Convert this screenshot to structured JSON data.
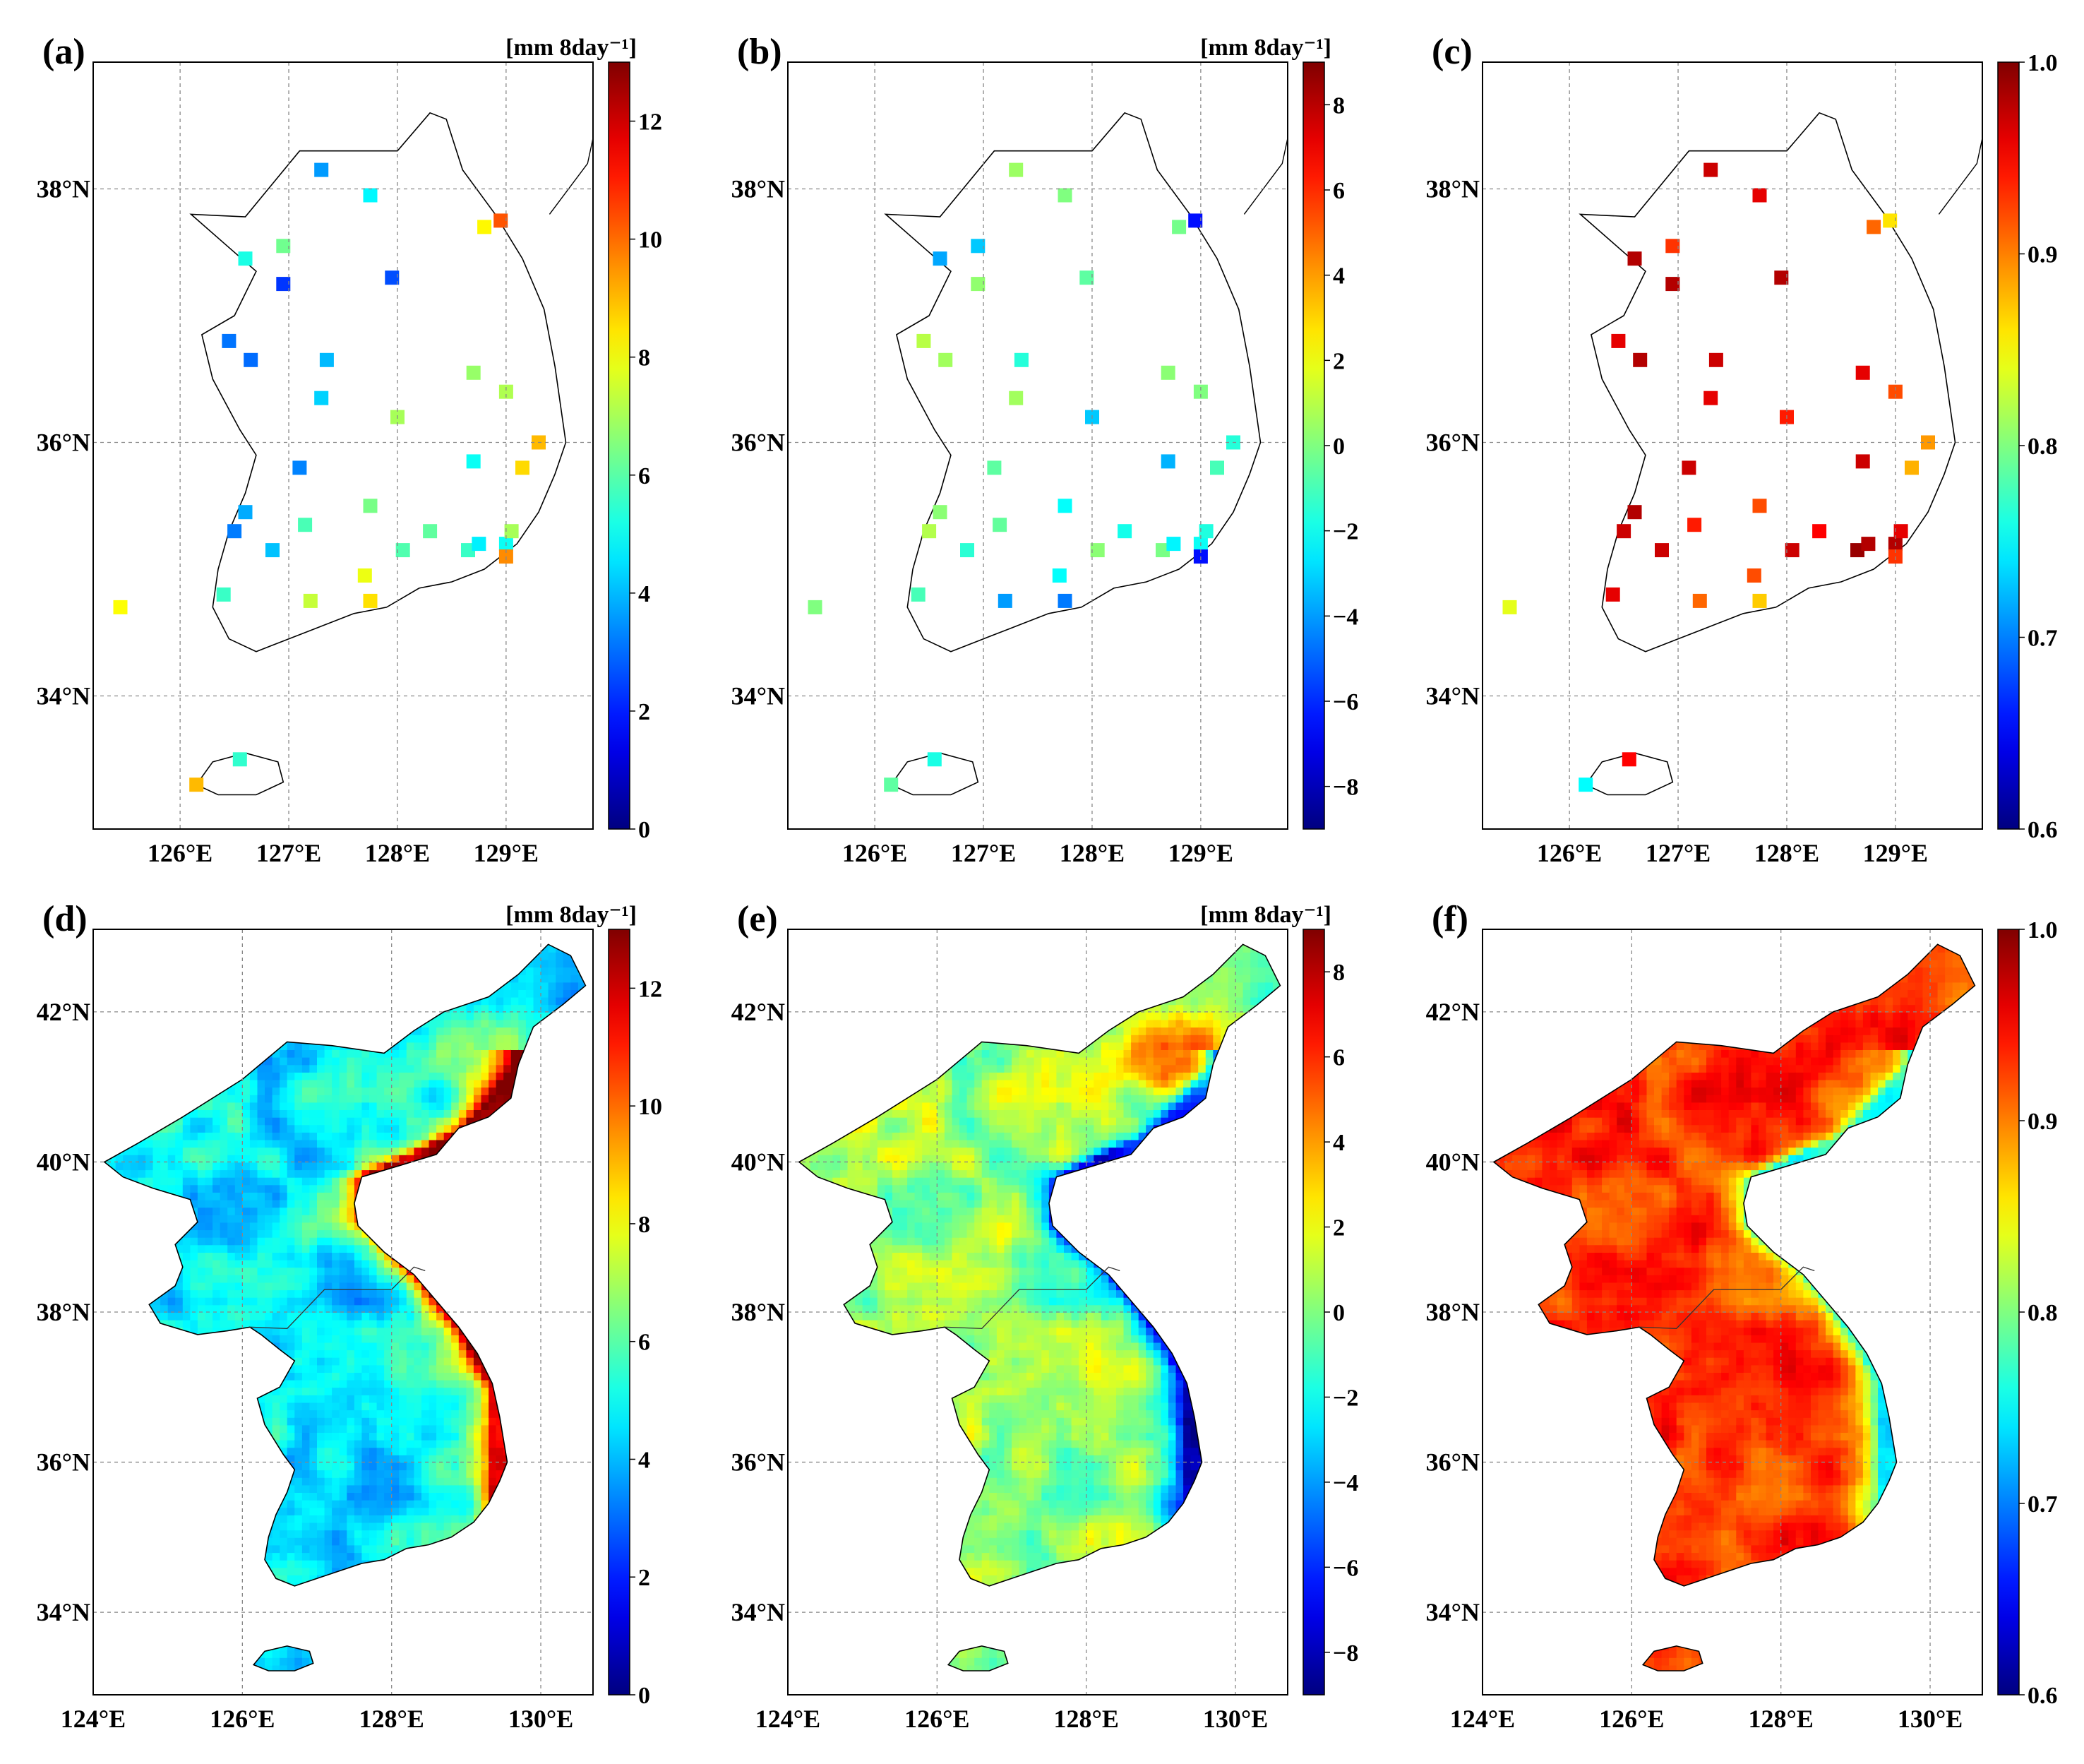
{
  "figure": {
    "panels": [
      {
        "id": "a",
        "label": "(a)",
        "type": "station",
        "units": "[mm 8day⁻¹]",
        "cbar": {
          "min": 0,
          "max": 13,
          "ticks": [
            "0",
            "2",
            "4",
            "6",
            "8",
            "10",
            "12"
          ]
        },
        "lon_ticks": [
          "126°E",
          "127°E",
          "128°E",
          "129°E"
        ],
        "lat_ticks": [
          "38°N",
          "36°N",
          "34°N"
        ]
      },
      {
        "id": "b",
        "label": "(b)",
        "type": "station",
        "units": "[mm 8day⁻¹]",
        "cbar": {
          "min": -9,
          "max": 9,
          "ticks": [
            "−8",
            "−6",
            "−4",
            "−2",
            "0",
            "2",
            "4",
            "6",
            "8"
          ]
        },
        "lon_ticks": [
          "126°E",
          "127°E",
          "128°E",
          "129°E"
        ],
        "lat_ticks": [
          "38°N",
          "36°N",
          "34°N"
        ]
      },
      {
        "id": "c",
        "label": "(c)",
        "type": "station",
        "units": "",
        "cbar": {
          "min": 0.6,
          "max": 1.0,
          "ticks": [
            "0.6",
            "0.7",
            "0.8",
            "0.9",
            "1.0"
          ]
        },
        "lon_ticks": [
          "126°E",
          "127°E",
          "128°E",
          "129°E"
        ],
        "lat_ticks": [
          "38°N",
          "36°N",
          "34°N"
        ]
      },
      {
        "id": "d",
        "label": "(d)",
        "type": "gridded",
        "units": "[mm 8day⁻¹]",
        "cbar": {
          "min": 0,
          "max": 13,
          "ticks": [
            "0",
            "2",
            "4",
            "6",
            "8",
            "10",
            "12"
          ]
        },
        "lon_ticks": [
          "124°E",
          "126°E",
          "128°E",
          "130°E"
        ],
        "lat_ticks": [
          "42°N",
          "40°N",
          "38°N",
          "36°N",
          "34°N"
        ]
      },
      {
        "id": "e",
        "label": "(e)",
        "type": "gridded",
        "units": "[mm 8day⁻¹]",
        "cbar": {
          "min": -9,
          "max": 9,
          "ticks": [
            "−8",
            "−6",
            "−4",
            "−2",
            "0",
            "2",
            "4",
            "6",
            "8"
          ]
        },
        "lon_ticks": [
          "124°E",
          "126°E",
          "128°E",
          "130°E"
        ],
        "lat_ticks": [
          "42°N",
          "40°N",
          "38°N",
          "36°N",
          "34°N"
        ]
      },
      {
        "id": "f",
        "label": "(f)",
        "type": "gridded",
        "units": "",
        "cbar": {
          "min": 0.6,
          "max": 1.0,
          "ticks": [
            "0.6",
            "0.7",
            "0.8",
            "0.9",
            "1.0"
          ]
        },
        "lon_ticks": [
          "124°E",
          "126°E",
          "128°E",
          "130°E"
        ],
        "lat_ticks": [
          "42°N",
          "40°N",
          "38°N",
          "36°N",
          "34°N"
        ]
      }
    ]
  },
  "chart_data": [
    {
      "panel": "a",
      "type": "scatter",
      "colorbar_range": [
        0,
        13
      ],
      "points": [
        {
          "lon": 127.3,
          "lat": 38.15,
          "v": 3.6
        },
        {
          "lon": 127.75,
          "lat": 37.95,
          "v": 4.8
        },
        {
          "lon": 128.8,
          "lat": 37.7,
          "v": 8.2
        },
        {
          "lon": 128.95,
          "lat": 37.75,
          "v": 10.3
        },
        {
          "lon": 126.6,
          "lat": 37.45,
          "v": 5.2
        },
        {
          "lon": 126.95,
          "lat": 37.55,
          "v": 6.3
        },
        {
          "lon": 126.95,
          "lat": 37.25,
          "v": 2.3
        },
        {
          "lon": 127.95,
          "lat": 37.3,
          "v": 2.6
        },
        {
          "lon": 126.45,
          "lat": 36.8,
          "v": 3.1
        },
        {
          "lon": 126.65,
          "lat": 36.65,
          "v": 3.0
        },
        {
          "lon": 127.35,
          "lat": 36.65,
          "v": 4.0
        },
        {
          "lon": 127.3,
          "lat": 36.35,
          "v": 4.3
        },
        {
          "lon": 128.7,
          "lat": 36.55,
          "v": 6.8
        },
        {
          "lon": 129.0,
          "lat": 36.4,
          "v": 7.1
        },
        {
          "lon": 128.0,
          "lat": 36.2,
          "v": 7.0
        },
        {
          "lon": 129.3,
          "lat": 36.0,
          "v": 9.0
        },
        {
          "lon": 127.1,
          "lat": 35.8,
          "v": 3.3
        },
        {
          "lon": 128.7,
          "lat": 35.85,
          "v": 5.0
        },
        {
          "lon": 129.15,
          "lat": 35.8,
          "v": 8.6
        },
        {
          "lon": 126.6,
          "lat": 35.45,
          "v": 3.8
        },
        {
          "lon": 126.5,
          "lat": 35.3,
          "v": 3.2
        },
        {
          "lon": 126.85,
          "lat": 35.15,
          "v": 4.1
        },
        {
          "lon": 127.15,
          "lat": 35.35,
          "v": 5.8
        },
        {
          "lon": 127.75,
          "lat": 35.5,
          "v": 6.4
        },
        {
          "lon": 128.05,
          "lat": 35.15,
          "v": 5.9
        },
        {
          "lon": 128.3,
          "lat": 35.3,
          "v": 6.1
        },
        {
          "lon": 128.65,
          "lat": 35.15,
          "v": 5.6
        },
        {
          "lon": 128.75,
          "lat": 35.2,
          "v": 4.7
        },
        {
          "lon": 129.0,
          "lat": 35.2,
          "v": 5.0
        },
        {
          "lon": 129.05,
          "lat": 35.3,
          "v": 7.0
        },
        {
          "lon": 129.0,
          "lat": 35.1,
          "v": 9.6
        },
        {
          "lon": 126.4,
          "lat": 34.8,
          "v": 5.6
        },
        {
          "lon": 127.2,
          "lat": 34.75,
          "v": 7.4
        },
        {
          "lon": 127.7,
          "lat": 34.95,
          "v": 7.9
        },
        {
          "lon": 127.75,
          "lat": 34.75,
          "v": 8.5
        },
        {
          "lon": 125.45,
          "lat": 34.7,
          "v": 8.1
        },
        {
          "lon": 126.55,
          "lat": 33.5,
          "v": 5.5
        },
        {
          "lon": 126.15,
          "lat": 33.3,
          "v": 9.0
        }
      ]
    },
    {
      "panel": "b",
      "type": "scatter",
      "colorbar_range": [
        -9,
        9
      ],
      "points": [
        {
          "lon": 127.3,
          "lat": 38.15,
          "v": 0.5
        },
        {
          "lon": 127.75,
          "lat": 37.95,
          "v": 0.0
        },
        {
          "lon": 128.8,
          "lat": 37.7,
          "v": -0.2
        },
        {
          "lon": 128.95,
          "lat": 37.75,
          "v": -6.5
        },
        {
          "lon": 126.6,
          "lat": 37.45,
          "v": -3.8
        },
        {
          "lon": 126.95,
          "lat": 37.55,
          "v": -3.2
        },
        {
          "lon": 126.95,
          "lat": 37.25,
          "v": 0.3
        },
        {
          "lon": 127.95,
          "lat": 37.3,
          "v": -0.6
        },
        {
          "lon": 126.45,
          "lat": 36.8,
          "v": 1.0
        },
        {
          "lon": 126.65,
          "lat": 36.65,
          "v": 0.6
        },
        {
          "lon": 127.35,
          "lat": 36.65,
          "v": -1.6
        },
        {
          "lon": 127.3,
          "lat": 36.35,
          "v": 0.6
        },
        {
          "lon": 128.7,
          "lat": 36.55,
          "v": 0.2
        },
        {
          "lon": 129.0,
          "lat": 36.4,
          "v": 0.0
        },
        {
          "lon": 128.0,
          "lat": 36.2,
          "v": -3.2
        },
        {
          "lon": 129.3,
          "lat": 36.0,
          "v": -1.6
        },
        {
          "lon": 127.1,
          "lat": 35.8,
          "v": -0.6
        },
        {
          "lon": 128.7,
          "lat": 35.85,
          "v": -3.6
        },
        {
          "lon": 129.15,
          "lat": 35.8,
          "v": -1.0
        },
        {
          "lon": 126.6,
          "lat": 35.45,
          "v": 0.2
        },
        {
          "lon": 126.5,
          "lat": 35.3,
          "v": 0.9
        },
        {
          "lon": 126.85,
          "lat": 35.15,
          "v": -1.5
        },
        {
          "lon": 127.15,
          "lat": 35.35,
          "v": -0.5
        },
        {
          "lon": 127.75,
          "lat": 35.5,
          "v": -2.2
        },
        {
          "lon": 128.05,
          "lat": 35.15,
          "v": 0.2
        },
        {
          "lon": 128.3,
          "lat": 35.3,
          "v": -1.9
        },
        {
          "lon": 128.65,
          "lat": 35.15,
          "v": -0.1
        },
        {
          "lon": 128.75,
          "lat": 35.2,
          "v": -2.4
        },
        {
          "lon": 129.0,
          "lat": 35.2,
          "v": -2.1
        },
        {
          "lon": 129.05,
          "lat": 35.3,
          "v": -1.7
        },
        {
          "lon": 129.0,
          "lat": 35.1,
          "v": -6.5
        },
        {
          "lon": 126.4,
          "lat": 34.8,
          "v": -1.0
        },
        {
          "lon": 127.2,
          "lat": 34.75,
          "v": -4.0
        },
        {
          "lon": 127.7,
          "lat": 34.95,
          "v": -2.2
        },
        {
          "lon": 127.75,
          "lat": 34.75,
          "v": -4.6
        },
        {
          "lon": 125.45,
          "lat": 34.7,
          "v": 0.0
        },
        {
          "lon": 126.55,
          "lat": 33.5,
          "v": -1.8
        },
        {
          "lon": 126.15,
          "lat": 33.3,
          "v": -0.6
        }
      ]
    },
    {
      "panel": "c",
      "type": "scatter",
      "colorbar_range": [
        0.6,
        1.0
      ],
      "points": [
        {
          "lon": 127.3,
          "lat": 38.15,
          "v": 0.97
        },
        {
          "lon": 127.75,
          "lat": 37.95,
          "v": 0.96
        },
        {
          "lon": 128.8,
          "lat": 37.7,
          "v": 0.91
        },
        {
          "lon": 128.95,
          "lat": 37.75,
          "v": 0.86
        },
        {
          "lon": 126.6,
          "lat": 37.45,
          "v": 0.98
        },
        {
          "lon": 126.95,
          "lat": 37.55,
          "v": 0.93
        },
        {
          "lon": 126.95,
          "lat": 37.25,
          "v": 0.98
        },
        {
          "lon": 127.95,
          "lat": 37.3,
          "v": 0.98
        },
        {
          "lon": 126.45,
          "lat": 36.8,
          "v": 0.96
        },
        {
          "lon": 126.65,
          "lat": 36.65,
          "v": 0.98
        },
        {
          "lon": 127.35,
          "lat": 36.65,
          "v": 0.97
        },
        {
          "lon": 127.3,
          "lat": 36.35,
          "v": 0.96
        },
        {
          "lon": 128.7,
          "lat": 36.55,
          "v": 0.96
        },
        {
          "lon": 129.0,
          "lat": 36.4,
          "v": 0.92
        },
        {
          "lon": 128.0,
          "lat": 36.2,
          "v": 0.94
        },
        {
          "lon": 129.3,
          "lat": 36.0,
          "v": 0.89
        },
        {
          "lon": 127.1,
          "lat": 35.8,
          "v": 0.97
        },
        {
          "lon": 128.7,
          "lat": 35.85,
          "v": 0.97
        },
        {
          "lon": 129.15,
          "lat": 35.8,
          "v": 0.88
        },
        {
          "lon": 126.6,
          "lat": 35.45,
          "v": 0.98
        },
        {
          "lon": 126.5,
          "lat": 35.3,
          "v": 0.97
        },
        {
          "lon": 126.85,
          "lat": 35.15,
          "v": 0.97
        },
        {
          "lon": 127.15,
          "lat": 35.35,
          "v": 0.94
        },
        {
          "lon": 127.75,
          "lat": 35.5,
          "v": 0.92
        },
        {
          "lon": 128.05,
          "lat": 35.15,
          "v": 0.97
        },
        {
          "lon": 128.3,
          "lat": 35.3,
          "v": 0.95
        },
        {
          "lon": 128.65,
          "lat": 35.15,
          "v": 0.99
        },
        {
          "lon": 128.75,
          "lat": 35.2,
          "v": 0.98
        },
        {
          "lon": 129.0,
          "lat": 35.2,
          "v": 0.98
        },
        {
          "lon": 129.05,
          "lat": 35.3,
          "v": 0.96
        },
        {
          "lon": 129.0,
          "lat": 35.1,
          "v": 0.93
        },
        {
          "lon": 126.4,
          "lat": 34.8,
          "v": 0.96
        },
        {
          "lon": 127.2,
          "lat": 34.75,
          "v": 0.91
        },
        {
          "lon": 127.7,
          "lat": 34.95,
          "v": 0.92
        },
        {
          "lon": 127.75,
          "lat": 34.75,
          "v": 0.87
        },
        {
          "lon": 125.45,
          "lat": 34.7,
          "v": 0.84
        },
        {
          "lon": 126.55,
          "lat": 33.5,
          "v": 0.95
        },
        {
          "lon": 126.15,
          "lat": 33.3,
          "v": 0.75
        }
      ]
    },
    {
      "panel": "d",
      "type": "heatmap",
      "description_values": {
        "land_typical": 4.5,
        "east_coast_max": 12.5,
        "colorbar_range": [
          0,
          13
        ]
      }
    },
    {
      "panel": "e",
      "type": "heatmap",
      "description_values": {
        "land_typical": 0.0,
        "east_coast_min": -8.5,
        "northeast_max": 7.0,
        "colorbar_range": [
          -9,
          9
        ]
      }
    },
    {
      "panel": "f",
      "type": "heatmap",
      "description_values": {
        "land_typical": 0.93,
        "coastal_min": 0.72,
        "colorbar_range": [
          0.6,
          1.0
        ]
      }
    }
  ]
}
